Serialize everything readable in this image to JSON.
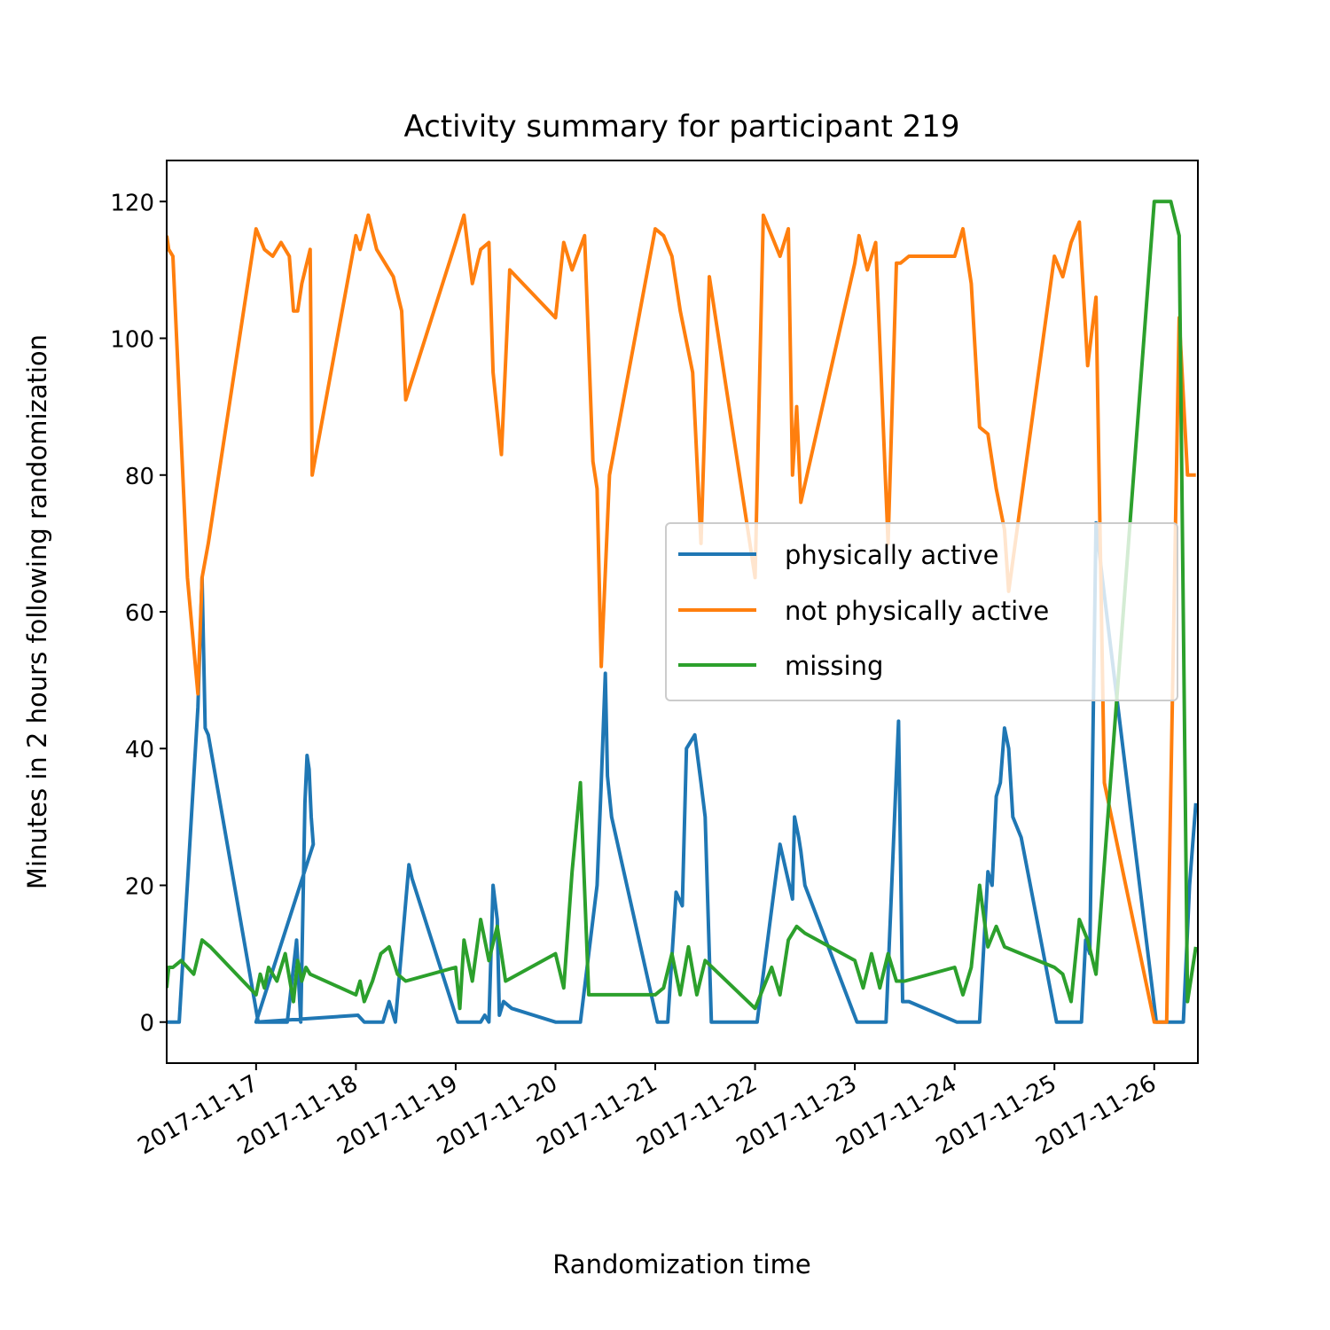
{
  "chart_data": {
    "type": "line",
    "title": "Activity summary for participant 219",
    "xlabel": "Randomization time",
    "ylabel": "Minutes in 2 hours following randomization",
    "x_type": "datetime",
    "xlim": [
      "2017-11-16 02:30",
      "2017-11-26 10:30"
    ],
    "ylim": [
      -6,
      126
    ],
    "x_ticks": [
      "2017-11-17",
      "2017-11-18",
      "2017-11-19",
      "2017-11-20",
      "2017-11-21",
      "2017-11-22",
      "2017-11-23",
      "2017-11-24",
      "2017-11-25",
      "2017-11-26"
    ],
    "y_ticks": [
      0,
      20,
      40,
      60,
      80,
      100,
      120
    ],
    "grid": false,
    "legend_position": "center-right",
    "series": [
      {
        "name": "physically active",
        "color": "#1f77b4",
        "x": [
          "2017-11-16 02:30",
          "2017-11-16 03:00",
          "2017-11-16 05:30",
          "2017-11-16 10:00",
          "2017-11-16 11:00",
          "2017-11-16 11:45",
          "2017-11-16 12:30",
          "2017-11-17 00:30",
          "2017-11-17 07:30",
          "2017-11-17 09:45",
          "2017-11-17 10:45",
          "2017-11-17 11:45",
          "2017-11-17 12:15",
          "2017-11-17 12:45",
          "2017-11-17 13:15",
          "2017-11-17 13:45",
          "2017-11-17 00:00",
          "2017-11-18 00:30",
          "2017-11-18 02:00",
          "2017-11-18 06:30",
          "2017-11-18 08:00",
          "2017-11-18 09:30",
          "2017-11-18 12:45",
          "2017-11-18 13:30",
          "2017-11-19 00:30",
          "2017-11-19 06:00",
          "2017-11-19 07:00",
          "2017-11-19 08:00",
          "2017-11-19 09:00",
          "2017-11-19 10:00",
          "2017-11-19 10:30",
          "2017-11-19 11:30",
          "2017-11-19 13:30",
          "2017-11-20 00:00",
          "2017-11-20 06:00",
          "2017-11-20 10:00",
          "2017-11-20 11:00",
          "2017-11-20 12:00",
          "2017-11-20 12:30",
          "2017-11-20 13:30",
          "2017-11-21 00:30",
          "2017-11-21 03:00",
          "2017-11-21 05:00",
          "2017-11-21 06:30",
          "2017-11-21 07:30",
          "2017-11-21 09:30",
          "2017-11-21 11:00",
          "2017-11-21 12:00",
          "2017-11-21 13:30",
          "2017-11-22 00:30",
          "2017-11-22 06:00",
          "2017-11-22 09:00",
          "2017-11-22 09:30",
          "2017-11-22 10:30",
          "2017-11-22 11:00",
          "2017-11-22 12:00",
          "2017-11-23 00:30",
          "2017-11-23 07:30",
          "2017-11-23 10:30",
          "2017-11-23 11:30",
          "2017-11-23 12:15",
          "2017-11-23 13:00",
          "2017-11-24 00:30",
          "2017-11-24 06:00",
          "2017-11-24 08:00",
          "2017-11-24 09:00",
          "2017-11-24 10:00",
          "2017-11-24 11:00",
          "2017-11-24 12:00",
          "2017-11-24 13:00",
          "2017-11-24 14:00",
          "2017-11-24 16:00",
          "2017-11-25 00:30",
          "2017-11-25 06:30",
          "2017-11-25 07:30",
          "2017-11-25 08:30",
          "2017-11-25 10:00",
          "2017-11-25 11:30",
          "2017-11-26 00:30",
          "2017-11-26 05:30",
          "2017-11-26 07:00",
          "2017-11-26 08:30",
          "2017-11-26 10:00"
        ],
        "y": [
          0,
          0,
          0,
          46,
          65,
          43,
          42,
          0,
          0,
          12,
          0,
          32,
          39,
          37,
          30,
          26,
          0,
          1,
          0,
          0,
          3,
          0,
          23,
          21,
          0,
          0,
          1,
          0,
          20,
          15,
          1,
          3,
          2,
          0,
          0,
          20,
          35,
          51,
          36,
          30,
          0,
          0,
          19,
          17,
          40,
          42,
          35,
          30,
          0,
          0,
          26,
          18,
          30,
          27,
          25,
          20,
          0,
          0,
          44,
          3,
          3,
          3,
          0,
          0,
          22,
          20,
          33,
          35,
          43,
          40,
          30,
          27,
          0,
          0,
          12,
          10,
          73,
          65,
          0,
          0,
          0,
          20,
          32
        ]
      },
      {
        "name": "not physically active",
        "color": "#ff7f0e",
        "x": [
          "2017-11-16 02:30",
          "2017-11-16 03:00",
          "2017-11-16 04:00",
          "2017-11-16 07:30",
          "2017-11-16 10:00",
          "2017-11-16 11:00",
          "2017-11-16 12:30",
          "2017-11-17 00:00",
          "2017-11-17 02:00",
          "2017-11-17 04:00",
          "2017-11-17 06:00",
          "2017-11-17 08:00",
          "2017-11-17 09:00",
          "2017-11-17 10:00",
          "2017-11-17 11:00",
          "2017-11-17 13:00",
          "2017-11-17 13:30",
          "2017-11-18 00:00",
          "2017-11-18 01:00",
          "2017-11-18 03:00",
          "2017-11-18 05:00",
          "2017-11-18 07:00",
          "2017-11-18 09:00",
          "2017-11-18 11:00",
          "2017-11-18 12:00",
          "2017-11-19 00:00",
          "2017-11-19 02:00",
          "2017-11-19 04:00",
          "2017-11-19 06:00",
          "2017-11-19 08:00",
          "2017-11-19 09:00",
          "2017-11-19 11:00",
          "2017-11-19 13:00",
          "2017-11-20 00:00",
          "2017-11-20 02:00",
          "2017-11-20 04:00",
          "2017-11-20 07:00",
          "2017-11-20 09:00",
          "2017-11-20 10:00",
          "2017-11-20 11:00",
          "2017-11-20 13:00",
          "2017-11-21 00:00",
          "2017-11-21 02:00",
          "2017-11-21 04:00",
          "2017-11-21 06:00",
          "2017-11-21 09:00",
          "2017-11-21 11:00",
          "2017-11-21 13:00",
          "2017-11-22 00:00",
          "2017-11-22 02:00",
          "2017-11-22 04:00",
          "2017-11-22 06:00",
          "2017-11-22 08:00",
          "2017-11-22 09:00",
          "2017-11-22 10:00",
          "2017-11-22 11:00",
          "2017-11-23 00:00",
          "2017-11-23 01:00",
          "2017-11-23 03:00",
          "2017-11-23 05:00",
          "2017-11-23 08:00",
          "2017-11-23 10:00",
          "2017-11-23 11:00",
          "2017-11-23 13:00",
          "2017-11-24 00:00",
          "2017-11-24 02:00",
          "2017-11-24 04:00",
          "2017-11-24 06:00",
          "2017-11-24 08:00",
          "2017-11-24 10:00",
          "2017-11-24 12:00",
          "2017-11-24 13:00",
          "2017-11-25 00:00",
          "2017-11-25 02:00",
          "2017-11-25 04:00",
          "2017-11-25 06:00",
          "2017-11-25 08:00",
          "2017-11-25 10:00",
          "2017-11-25 12:00",
          "2017-11-26 00:00",
          "2017-11-26 03:00",
          "2017-11-26 06:00",
          "2017-11-26 08:00",
          "2017-11-26 10:00"
        ],
        "y": [
          115,
          113,
          112,
          65,
          48,
          65,
          70,
          116,
          113,
          112,
          114,
          112,
          104,
          104,
          108,
          113,
          80,
          115,
          113,
          118,
          113,
          111,
          109,
          104,
          91,
          114,
          118,
          108,
          113,
          114,
          95,
          83,
          110,
          103,
          114,
          110,
          115,
          82,
          78,
          52,
          80,
          116,
          115,
          112,
          104,
          95,
          70,
          109,
          65,
          118,
          115,
          112,
          116,
          80,
          90,
          76,
          111,
          115,
          110,
          114,
          70,
          111,
          111,
          112,
          112,
          116,
          108,
          87,
          86,
          78,
          72,
          63,
          112,
          109,
          114,
          117,
          96,
          106,
          35,
          0,
          0,
          103,
          80,
          80
        ]
      },
      {
        "name": "missing",
        "color": "#2ca02c",
        "x": [
          "2017-11-16 02:30",
          "2017-11-16 03:00",
          "2017-11-16 04:00",
          "2017-11-16 06:00",
          "2017-11-16 09:00",
          "2017-11-16 11:00",
          "2017-11-16 13:00",
          "2017-11-17 00:00",
          "2017-11-17 01:00",
          "2017-11-17 02:00",
          "2017-11-17 03:00",
          "2017-11-17 05:00",
          "2017-11-17 07:00",
          "2017-11-17 09:00",
          "2017-11-17 10:00",
          "2017-11-17 11:00",
          "2017-11-17 12:00",
          "2017-11-17 13:00",
          "2017-11-18 00:00",
          "2017-11-18 01:00",
          "2017-11-18 02:00",
          "2017-11-18 04:00",
          "2017-11-18 06:00",
          "2017-11-18 08:00",
          "2017-11-18 10:00",
          "2017-11-18 12:00",
          "2017-11-19 00:00",
          "2017-11-19 01:00",
          "2017-11-19 02:00",
          "2017-11-19 04:00",
          "2017-11-19 06:00",
          "2017-11-19 08:00",
          "2017-11-19 10:00",
          "2017-11-19 12:00",
          "2017-11-20 00:00",
          "2017-11-20 02:00",
          "2017-11-20 04:00",
          "2017-11-20 06:00",
          "2017-11-20 08:00",
          "2017-11-20 09:00",
          "2017-11-20 10:00",
          "2017-11-20 12:00",
          "2017-11-21 00:00",
          "2017-11-21 02:00",
          "2017-11-21 04:00",
          "2017-11-21 06:00",
          "2017-11-21 08:00",
          "2017-11-21 10:00",
          "2017-11-21 12:00",
          "2017-11-22 00:00",
          "2017-11-22 02:00",
          "2017-11-22 04:00",
          "2017-11-22 06:00",
          "2017-11-22 08:00",
          "2017-11-22 10:00",
          "2017-11-22 12:00",
          "2017-11-23 00:00",
          "2017-11-23 02:00",
          "2017-11-23 04:00",
          "2017-11-23 06:00",
          "2017-11-23 08:00",
          "2017-11-23 10:00",
          "2017-11-23 12:00",
          "2017-11-24 00:00",
          "2017-11-24 02:00",
          "2017-11-24 04:00",
          "2017-11-24 06:00",
          "2017-11-24 08:00",
          "2017-11-24 10:00",
          "2017-11-24 12:00",
          "2017-11-25 00:00",
          "2017-11-25 02:00",
          "2017-11-25 04:00",
          "2017-11-25 06:00",
          "2017-11-25 08:00",
          "2017-11-25 10:00",
          "2017-11-26 00:00",
          "2017-11-26 02:00",
          "2017-11-26 04:00",
          "2017-11-26 06:00",
          "2017-11-26 08:00",
          "2017-11-26 10:00"
        ],
        "y": [
          5,
          8,
          8,
          9,
          7,
          12,
          11,
          4,
          7,
          5,
          8,
          6,
          10,
          3,
          9,
          6,
          8,
          7,
          4,
          6,
          3,
          6,
          10,
          11,
          7,
          6,
          8,
          2,
          12,
          6,
          15,
          9,
          14,
          6,
          10,
          5,
          22,
          35,
          4,
          4,
          4,
          4,
          4,
          5,
          10,
          4,
          11,
          4,
          9,
          2,
          5,
          8,
          4,
          12,
          14,
          13,
          9,
          5,
          10,
          5,
          10,
          6,
          6,
          8,
          4,
          8,
          20,
          11,
          14,
          11,
          8,
          7,
          3,
          15,
          12,
          7,
          120,
          120,
          120,
          115,
          3,
          11
        ]
      }
    ]
  }
}
